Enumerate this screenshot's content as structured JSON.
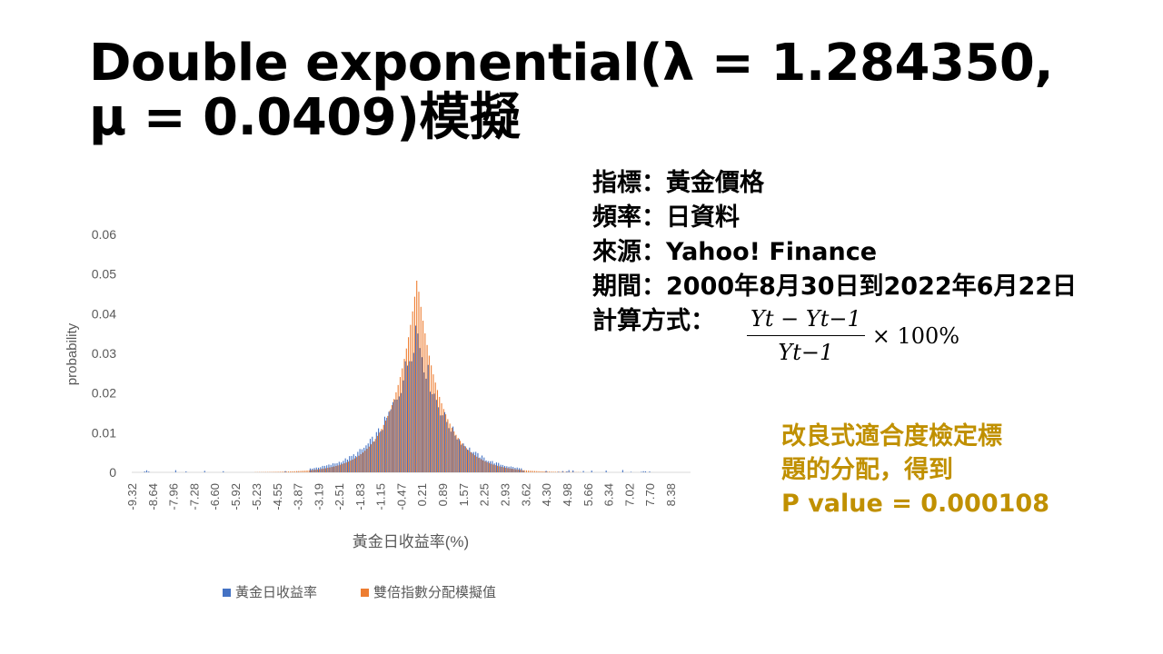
{
  "slide": {
    "title": "Double exponential(λ = 1.284350, μ = 0.0409)模擬"
  },
  "info": {
    "indicator": "指標：黃金價格",
    "frequency": "頻率：日資料",
    "source": "來源：Yahoo! Finance",
    "period": "期間：2000年8月30日到2022年6月22日",
    "method_label": "計算方式：",
    "formula_num": "Yt − Yt−1",
    "formula_den": "Yt−1",
    "formula_mult": "× 100%"
  },
  "conclusion": {
    "line1": "改良式適合度檢定標",
    "line2": "題的分配，得到",
    "line3": "P value = 0.000108"
  },
  "colors": {
    "series_empirical": "#4472C4",
    "series_simulated": "#ED7D31",
    "conclusion": "#C09000",
    "axis_text": "#595959"
  },
  "chart_data": {
    "type": "bar",
    "title": "",
    "xlabel": "黃金日收益率(%)",
    "ylabel": "probability",
    "ylim": [
      0,
      0.06
    ],
    "yticks": [
      "0",
      "0.01",
      "0.02",
      "0.03",
      "0.04",
      "0.05",
      "0.06"
    ],
    "xticks": [
      "-9.32",
      "-8.64",
      "-7.96",
      "-7.28",
      "-6.60",
      "-5.92",
      "-5.23",
      "-4.55",
      "-3.87",
      "-3.19",
      "-2.51",
      "-1.83",
      "-1.15",
      "-0.47",
      "0.21",
      "0.89",
      "1.57",
      "2.25",
      "2.93",
      "3.62",
      "4.30",
      "4.98",
      "5.66",
      "6.34",
      "7.02",
      "7.70",
      "8.38"
    ],
    "bin_start": -9.32,
    "bin_width": 0.068,
    "bin_count": 270,
    "legend_position": "bottom",
    "series": [
      {
        "name": "黃金日收益率",
        "model": "empirical",
        "lambda": 1.28435,
        "mu": 0.0409,
        "peak": 0.037
      },
      {
        "name": "雙倍指數分配模擬值",
        "model": "laplace",
        "lambda": 1.28435,
        "mu": 0.0409,
        "peak": 0.049
      }
    ]
  }
}
